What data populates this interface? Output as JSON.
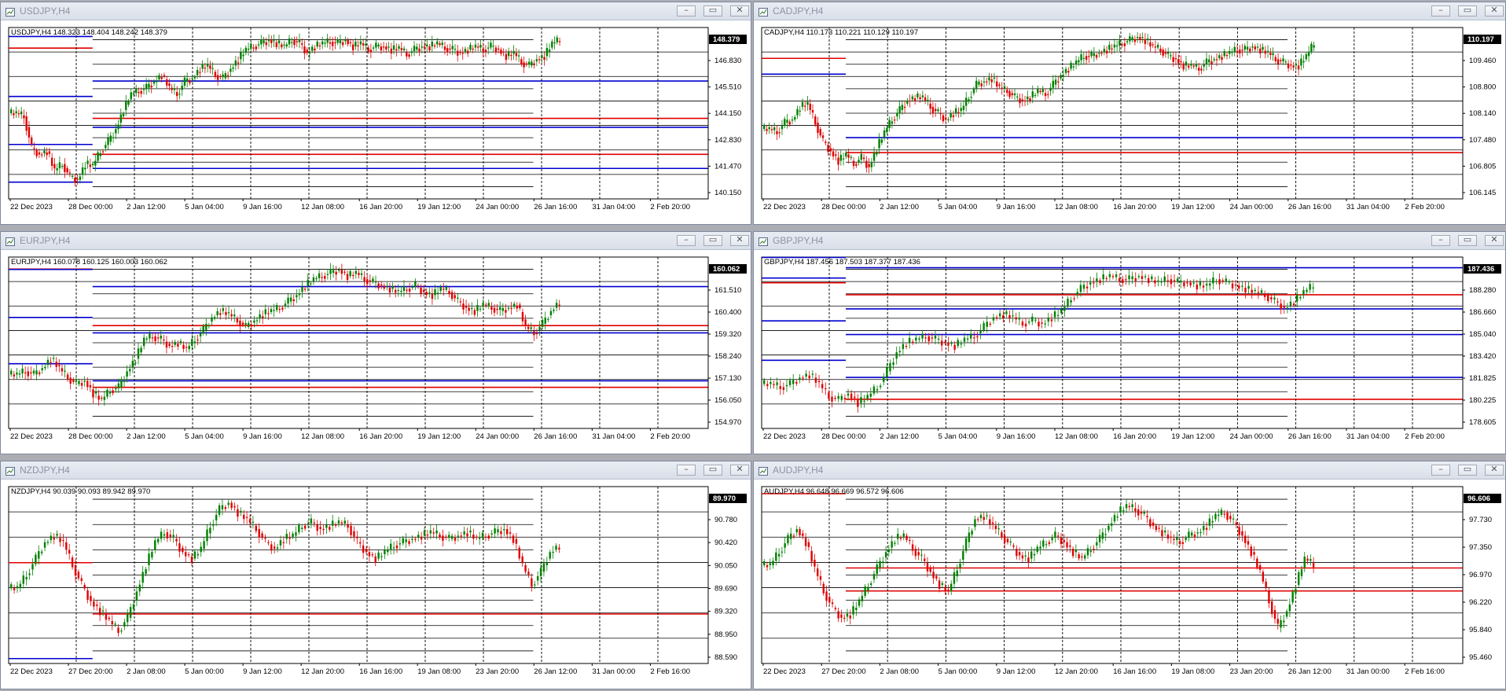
{
  "windows": [
    {
      "title": "USDJPY,H4",
      "header": "USDJPY,H4  148.323 148.404 148.242 148.379",
      "current_price": "148.379",
      "price_labels": [
        "146.830",
        "145.510",
        "144.150",
        "142.830",
        "141.470",
        "140.150"
      ],
      "time_labels": [
        "22 Dec 2023",
        "28 Dec 00:00",
        "2 Jan 12:00",
        "5 Jan 04:00",
        "9 Jan 16:00",
        "12 Jan 08:00",
        "16 Jan 20:00",
        "19 Jan 12:00",
        "24 Jan 00:00",
        "26 Jan 16:00",
        "31 Jan 04:00",
        "2 Feb 20:00"
      ],
      "candle_path": [
        0.5,
        0.52,
        0.72,
        0.76,
        0.74,
        0.86,
        0.82,
        0.9,
        0.92,
        0.82,
        0.83,
        0.74,
        0.68,
        0.6,
        0.48,
        0.38,
        0.36,
        0.34,
        0.3,
        0.26,
        0.34,
        0.38,
        0.3,
        0.28,
        0.22,
        0.2,
        0.26,
        0.28,
        0.22,
        0.16,
        0.1,
        0.08,
        0.06,
        0.04,
        0.06,
        0.08,
        0.04,
        0.06,
        0.12,
        0.08,
        0.06,
        0.05,
        0.06,
        0.04,
        0.08,
        0.06,
        0.1,
        0.08,
        0.08,
        0.1,
        0.09,
        0.13,
        0.1,
        0.08,
        0.08,
        0.06,
        0.09,
        0.1,
        0.12,
        0.1,
        0.08,
        0.1,
        0.08,
        0.1,
        0.14,
        0.12,
        0.18,
        0.2,
        0.16,
        0.14,
        0.06,
        0.04
      ]
    },
    {
      "title": "CADJPY,H4",
      "header": "CADJPY,H4  110.173 110.221 110.129 110.197",
      "current_price": "110.197",
      "price_labels": [
        "109.460",
        "108.800",
        "108.140",
        "107.480",
        "106.805",
        "106.145"
      ],
      "time_labels": [
        "22 Dec 2023",
        "28 Dec 00:00",
        "2 Jan 12:00",
        "5 Jan 04:00",
        "9 Jan 16:00",
        "12 Jan 08:00",
        "16 Jan 20:00",
        "19 Jan 12:00",
        "24 Jan 00:00",
        "26 Jan 16:00",
        "31 Jan 04:00",
        "2 Feb 20:00"
      ],
      "candle_path": [
        0.6,
        0.62,
        0.56,
        0.54,
        0.46,
        0.44,
        0.56,
        0.68,
        0.74,
        0.8,
        0.76,
        0.82,
        0.78,
        0.84,
        0.72,
        0.62,
        0.54,
        0.48,
        0.42,
        0.4,
        0.4,
        0.46,
        0.5,
        0.54,
        0.5,
        0.48,
        0.4,
        0.32,
        0.3,
        0.28,
        0.34,
        0.36,
        0.4,
        0.42,
        0.4,
        0.36,
        0.38,
        0.32,
        0.26,
        0.22,
        0.18,
        0.14,
        0.14,
        0.12,
        0.1,
        0.08,
        0.06,
        0.04,
        0.02,
        0.04,
        0.08,
        0.1,
        0.14,
        0.16,
        0.2,
        0.2,
        0.22,
        0.18,
        0.16,
        0.14,
        0.12,
        0.1,
        0.1,
        0.08,
        0.1,
        0.12,
        0.16,
        0.18,
        0.2,
        0.2,
        0.14,
        0.06
      ]
    },
    {
      "title": "EURJPY,H4",
      "header": "EURJPY,H4  160.078 160.125 160.003 160.062",
      "current_price": "160.062",
      "price_labels": [
        "161.510",
        "160.400",
        "159.320",
        "158.240",
        "157.130",
        "156.050",
        "154.970"
      ],
      "time_labels": [
        "22 Dec 2023",
        "28 Dec 00:00",
        "2 Jan 12:00",
        "5 Jan 04:00",
        "9 Jan 16:00",
        "12 Jan 08:00",
        "16 Jan 20:00",
        "19 Jan 12:00",
        "24 Jan 00:00",
        "26 Jan 16:00",
        "31 Jan 04:00",
        "2 Feb 20:00"
      ],
      "candle_path": [
        0.7,
        0.68,
        0.7,
        0.66,
        0.6,
        0.66,
        0.72,
        0.76,
        0.74,
        0.82,
        0.86,
        0.8,
        0.78,
        0.68,
        0.6,
        0.48,
        0.46,
        0.48,
        0.52,
        0.5,
        0.54,
        0.48,
        0.42,
        0.34,
        0.3,
        0.32,
        0.36,
        0.4,
        0.36,
        0.32,
        0.3,
        0.28,
        0.24,
        0.2,
        0.14,
        0.1,
        0.08,
        0.06,
        0.04,
        0.08,
        0.06,
        0.1,
        0.12,
        0.14,
        0.16,
        0.18,
        0.16,
        0.14,
        0.18,
        0.2,
        0.16,
        0.18,
        0.24,
        0.28,
        0.3,
        0.26,
        0.28,
        0.3,
        0.28,
        0.26,
        0.4,
        0.44,
        0.38,
        0.3,
        0.24
      ]
    },
    {
      "title": "GBPJPY,H4",
      "header": "GBPJPY,H4  187.456 187.503 187.377 187.436",
      "current_price": "187.436",
      "price_labels": [
        "188.280",
        "186.660",
        "185.040",
        "183.420",
        "181.825",
        "180.225",
        "178.605"
      ],
      "time_labels": [
        "22 Dec 2023",
        "28 Dec 00:00",
        "2 Jan 12:00",
        "5 Jan 04:00",
        "9 Jan 16:00",
        "12 Jan 08:00",
        "16 Jan 20:00",
        "19 Jan 12:00",
        "24 Jan 00:00",
        "26 Jan 16:00",
        "31 Jan 04:00",
        "2 Feb 20:00"
      ],
      "candle_path": [
        0.76,
        0.78,
        0.76,
        0.72,
        0.7,
        0.76,
        0.84,
        0.86,
        0.82,
        0.88,
        0.84,
        0.78,
        0.68,
        0.56,
        0.5,
        0.48,
        0.46,
        0.48,
        0.5,
        0.52,
        0.48,
        0.46,
        0.4,
        0.34,
        0.32,
        0.34,
        0.38,
        0.36,
        0.38,
        0.34,
        0.3,
        0.22,
        0.16,
        0.12,
        0.1,
        0.08,
        0.1,
        0.1,
        0.08,
        0.1,
        0.12,
        0.1,
        0.12,
        0.12,
        0.14,
        0.14,
        0.1,
        0.12,
        0.14,
        0.16,
        0.18,
        0.2,
        0.24,
        0.28,
        0.24,
        0.18,
        0.14
      ]
    },
    {
      "title": "NZDJPY,H4",
      "header": "NZDJPY,H4  90.039 90.093 89.942 89.970",
      "current_price": "89.970",
      "price_labels": [
        "90.780",
        "90.420",
        "90.050",
        "89.690",
        "89.320",
        "88.950",
        "88.590"
      ],
      "time_labels": [
        "22 Dec 2023",
        "27 Dec 20:00",
        "2 Jan 08:00",
        "5 Jan 00:00",
        "9 Jan 12:00",
        "12 Jan 20:00",
        "16 Jan 16:00",
        "19 Jan 08:00",
        "23 Jan 20:00",
        "26 Jan 12:00",
        "31 Jan 00:00",
        "2 Feb 16:00"
      ],
      "candle_path": [
        0.58,
        0.5,
        0.4,
        0.3,
        0.26,
        0.3,
        0.44,
        0.56,
        0.66,
        0.72,
        0.78,
        0.84,
        0.76,
        0.6,
        0.44,
        0.3,
        0.24,
        0.28,
        0.36,
        0.4,
        0.34,
        0.2,
        0.1,
        0.06,
        0.12,
        0.16,
        0.22,
        0.3,
        0.34,
        0.28,
        0.26,
        0.2,
        0.18,
        0.22,
        0.2,
        0.18,
        0.2,
        0.3,
        0.36,
        0.4,
        0.36,
        0.32,
        0.3,
        0.28,
        0.26,
        0.24,
        0.26,
        0.28,
        0.26,
        0.24,
        0.28,
        0.26,
        0.24,
        0.22,
        0.28,
        0.44,
        0.56,
        0.48,
        0.36,
        0.32
      ]
    },
    {
      "title": "AUDJPY,H4",
      "header": "AUDJPY,H4  96.648 96.669 96.572 96.606",
      "current_price": "96.606",
      "price_labels": [
        "97.730",
        "97.350",
        "96.970",
        "96.220",
        "95.840",
        "95.460"
      ],
      "time_labels": [
        "22 Dec 2023",
        "27 Dec 20:00",
        "2 Jan 08:00",
        "5 Jan 00:00",
        "9 Jan 12:00",
        "12 Jan 20:00",
        "16 Jan 16:00",
        "19 Jan 08:00",
        "23 Jan 20:00",
        "26 Jan 12:00",
        "31 Jan 00:00",
        "2 Feb 16:00"
      ],
      "candle_path": [
        0.44,
        0.36,
        0.28,
        0.22,
        0.3,
        0.46,
        0.6,
        0.7,
        0.76,
        0.74,
        0.66,
        0.56,
        0.46,
        0.36,
        0.28,
        0.26,
        0.34,
        0.4,
        0.48,
        0.56,
        0.6,
        0.46,
        0.3,
        0.16,
        0.14,
        0.2,
        0.26,
        0.32,
        0.38,
        0.4,
        0.34,
        0.3,
        0.26,
        0.3,
        0.36,
        0.4,
        0.34,
        0.28,
        0.2,
        0.12,
        0.08,
        0.1,
        0.14,
        0.2,
        0.24,
        0.28,
        0.3,
        0.26,
        0.24,
        0.2,
        0.14,
        0.12,
        0.18,
        0.26,
        0.36,
        0.48,
        0.66,
        0.82,
        0.72,
        0.56,
        0.4,
        0.44
      ]
    }
  ]
}
